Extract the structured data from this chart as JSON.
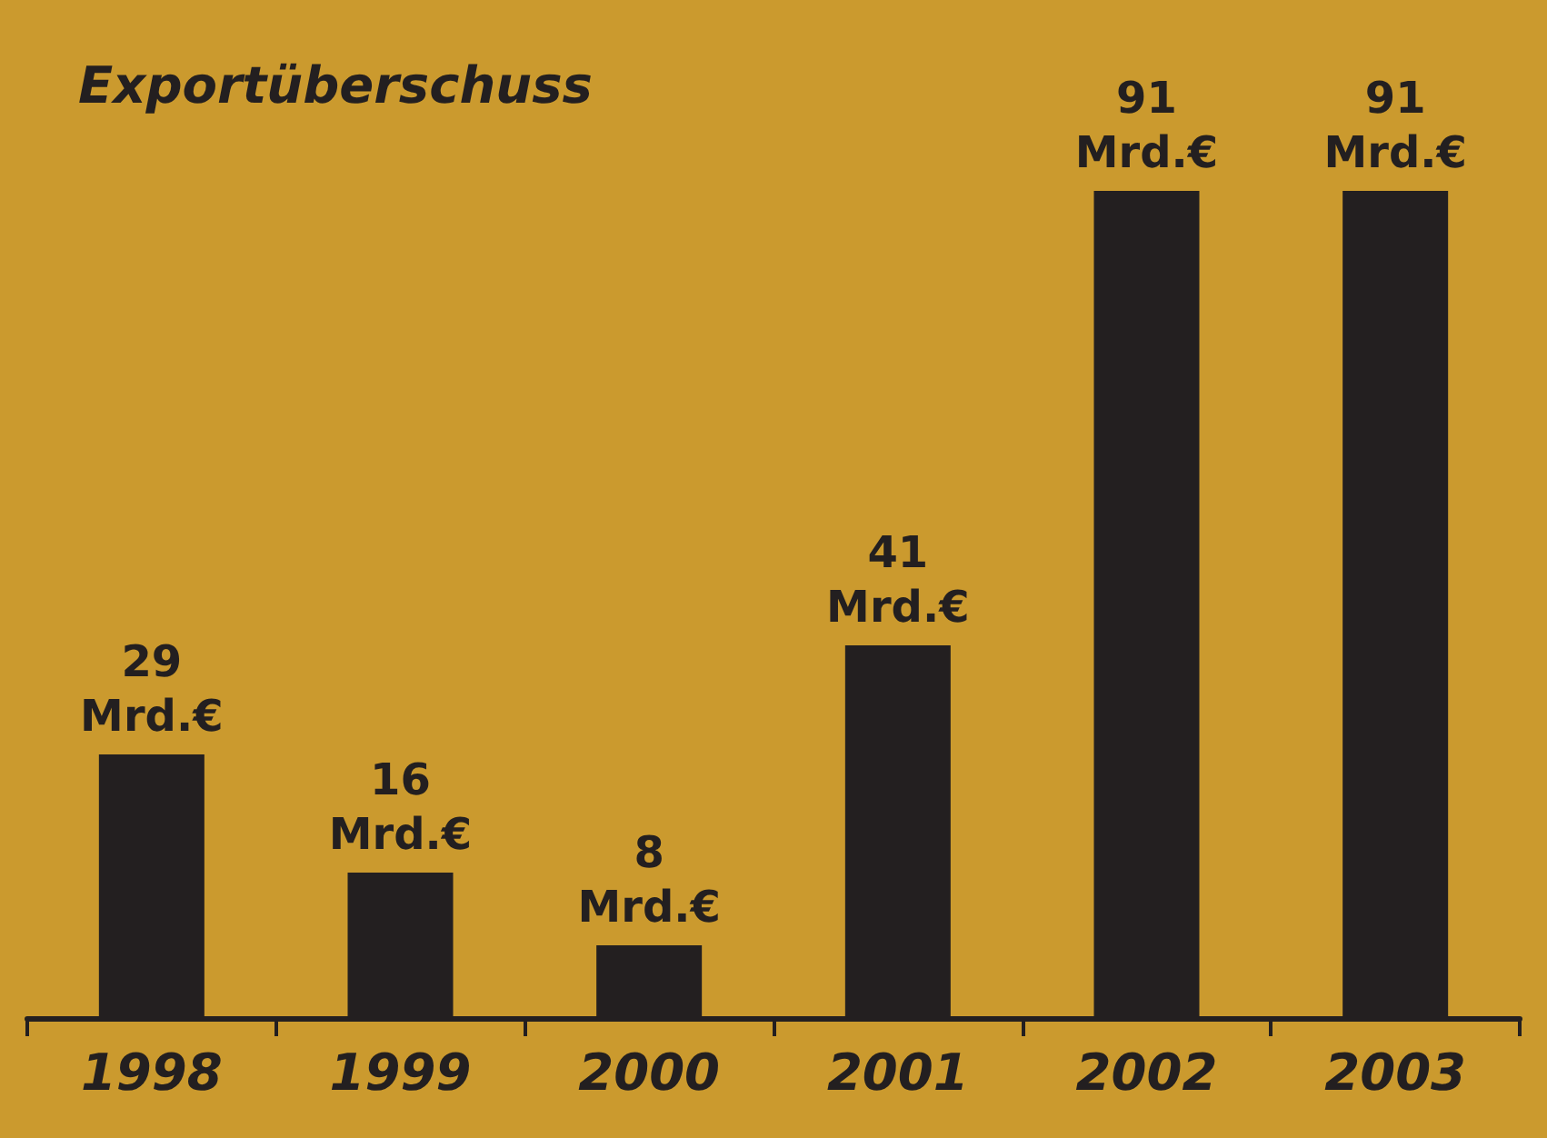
{
  "chart_data": {
    "type": "bar",
    "title": "Exportüberschuss",
    "categories": [
      "1998",
      "1999",
      "2000",
      "2001",
      "2002",
      "2003"
    ],
    "values": [
      29,
      16,
      8,
      41,
      91,
      91
    ],
    "value_labels": [
      "29\nMrd.€",
      "16\nMrd.€",
      "8\nMrd.€",
      "41\nMrd.€",
      "91\nMrd.€",
      "91\nMrd.€"
    ],
    "color": "#231f20"
  }
}
